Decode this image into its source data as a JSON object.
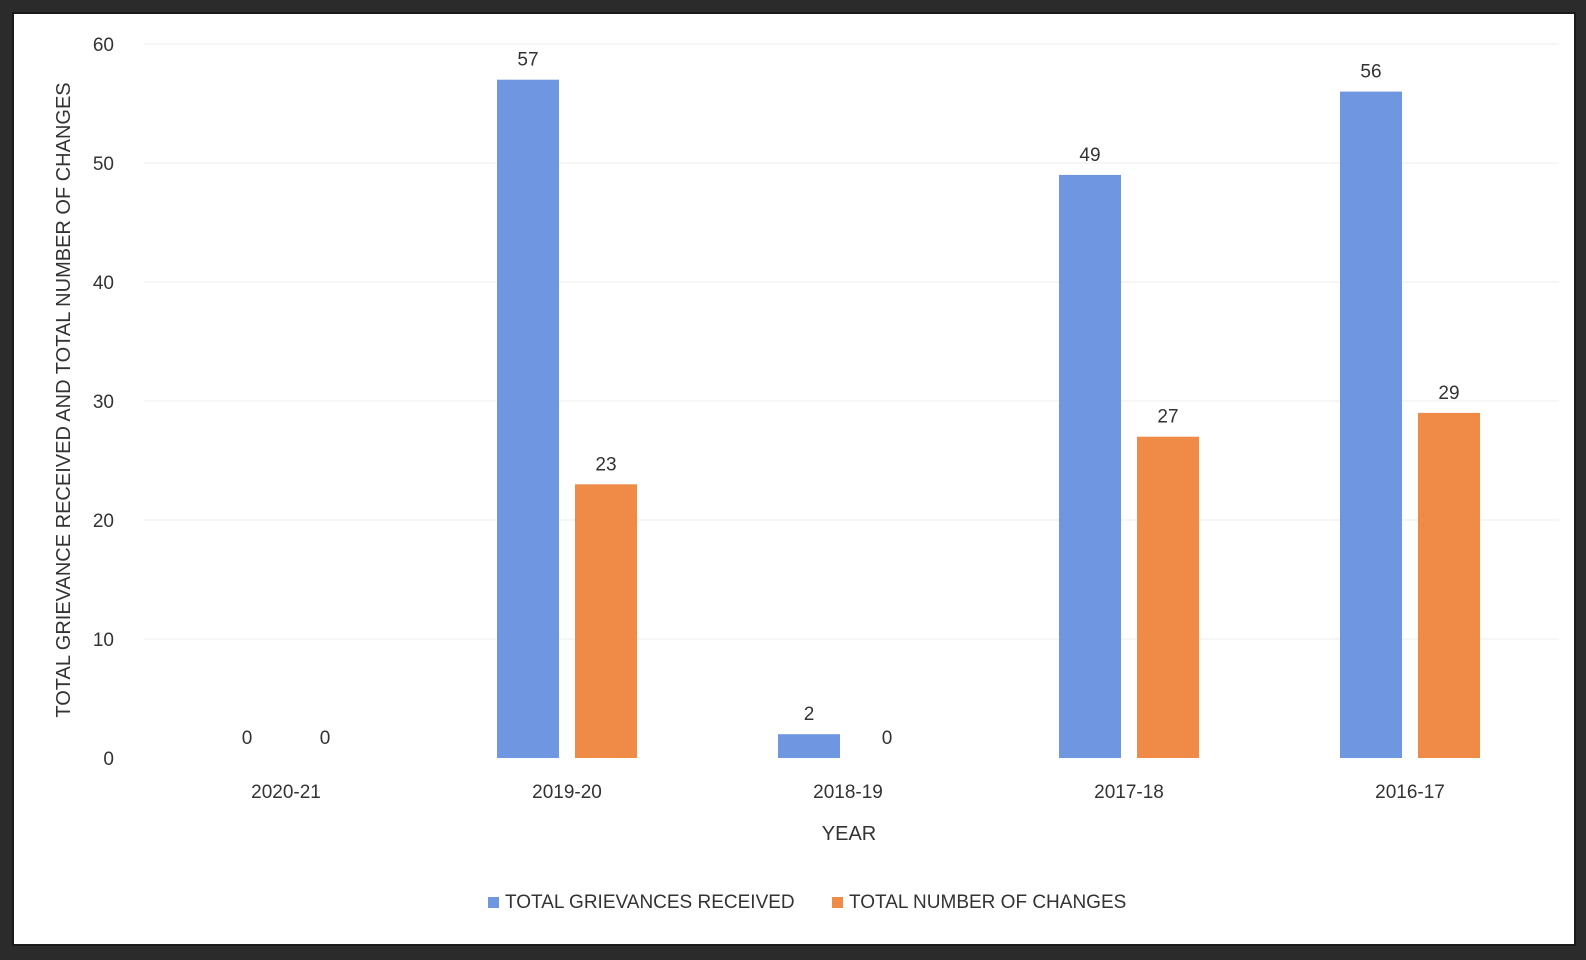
{
  "chart_data": {
    "type": "bar",
    "categories": [
      "2020-21",
      "2019-20",
      "2018-19",
      "2017-18",
      "2016-17"
    ],
    "series": [
      {
        "name": "TOTAL GRIEVANCES RECEIVED",
        "values": [
          0,
          57,
          2,
          49,
          56
        ],
        "color": "#6f96e0"
      },
      {
        "name": "TOTAL NUMBER OF CHANGES",
        "values": [
          0,
          23,
          0,
          27,
          29
        ],
        "color": "#ef8a47"
      }
    ],
    "xlabel": "YEAR",
    "ylabel": "TOTAL GRIEVANCE RECEIVED AND TOTAL NUMBER OF CHANGES",
    "ylim": [
      0,
      60
    ],
    "yticks": [
      0,
      10,
      20,
      30,
      40,
      50,
      60
    ],
    "grid": true,
    "legend_position": "bottom"
  }
}
